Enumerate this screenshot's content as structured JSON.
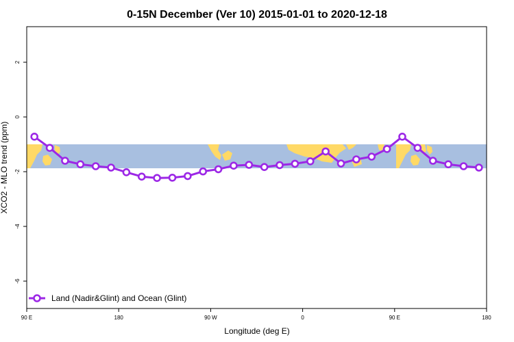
{
  "chart_data": {
    "type": "line",
    "title": "0-15N December (Ver 10)   2015-01-01 to 2020-12-18",
    "xlabel": "Longitude (deg E)",
    "ylabel": "XCO2 - MLO trend (ppm)",
    "x_ticks": [
      {
        "value": 90,
        "label": "90 E"
      },
      {
        "value": 180,
        "label": "180"
      },
      {
        "value": 270,
        "label": "90 W"
      },
      {
        "value": 360,
        "label": "0"
      },
      {
        "value": 450,
        "label": "90 E"
      },
      {
        "value": 540,
        "label": "180"
      }
    ],
    "y_ticks": [
      {
        "value": 2,
        "label": "2"
      },
      {
        "value": 0,
        "label": "0"
      },
      {
        "value": -2,
        "label": "-2"
      },
      {
        "value": -4,
        "label": "-4"
      },
      {
        "value": -6,
        "label": "-6"
      }
    ],
    "xlim": [
      90,
      540
    ],
    "ylim": [
      -7,
      3.3
    ],
    "grid": false,
    "legend_position": "bottom-left",
    "colors": {
      "series": "#9c27e6",
      "ocean": "#a8bfe0",
      "land": "#ffd966"
    },
    "series": [
      {
        "name": "Land (Nadir&Glint) and Ocean (Glint)",
        "x": [
          97.5,
          112.5,
          127.5,
          142.5,
          157.5,
          172.5,
          187.5,
          202.5,
          217.5,
          232.5,
          247.5,
          262.5,
          277.5,
          292.5,
          307.5,
          322.5,
          337.5,
          352.5,
          367.5,
          382.5,
          397.5,
          412.5,
          427.5,
          442.5,
          457.5,
          472.5,
          487.5,
          502.5,
          517.5,
          532.5
        ],
        "y": [
          -0.72,
          -1.13,
          -1.6,
          -1.73,
          -1.8,
          -1.85,
          -2.02,
          -2.18,
          -2.23,
          -2.22,
          -2.16,
          -1.99,
          -1.91,
          -1.78,
          -1.75,
          -1.83,
          -1.76,
          -1.71,
          -1.62,
          -1.26,
          -1.7,
          -1.55,
          -1.45,
          -1.17,
          -0.72,
          -1.13,
          -1.6,
          -1.73,
          -1.8,
          -1.85
        ]
      }
    ]
  }
}
